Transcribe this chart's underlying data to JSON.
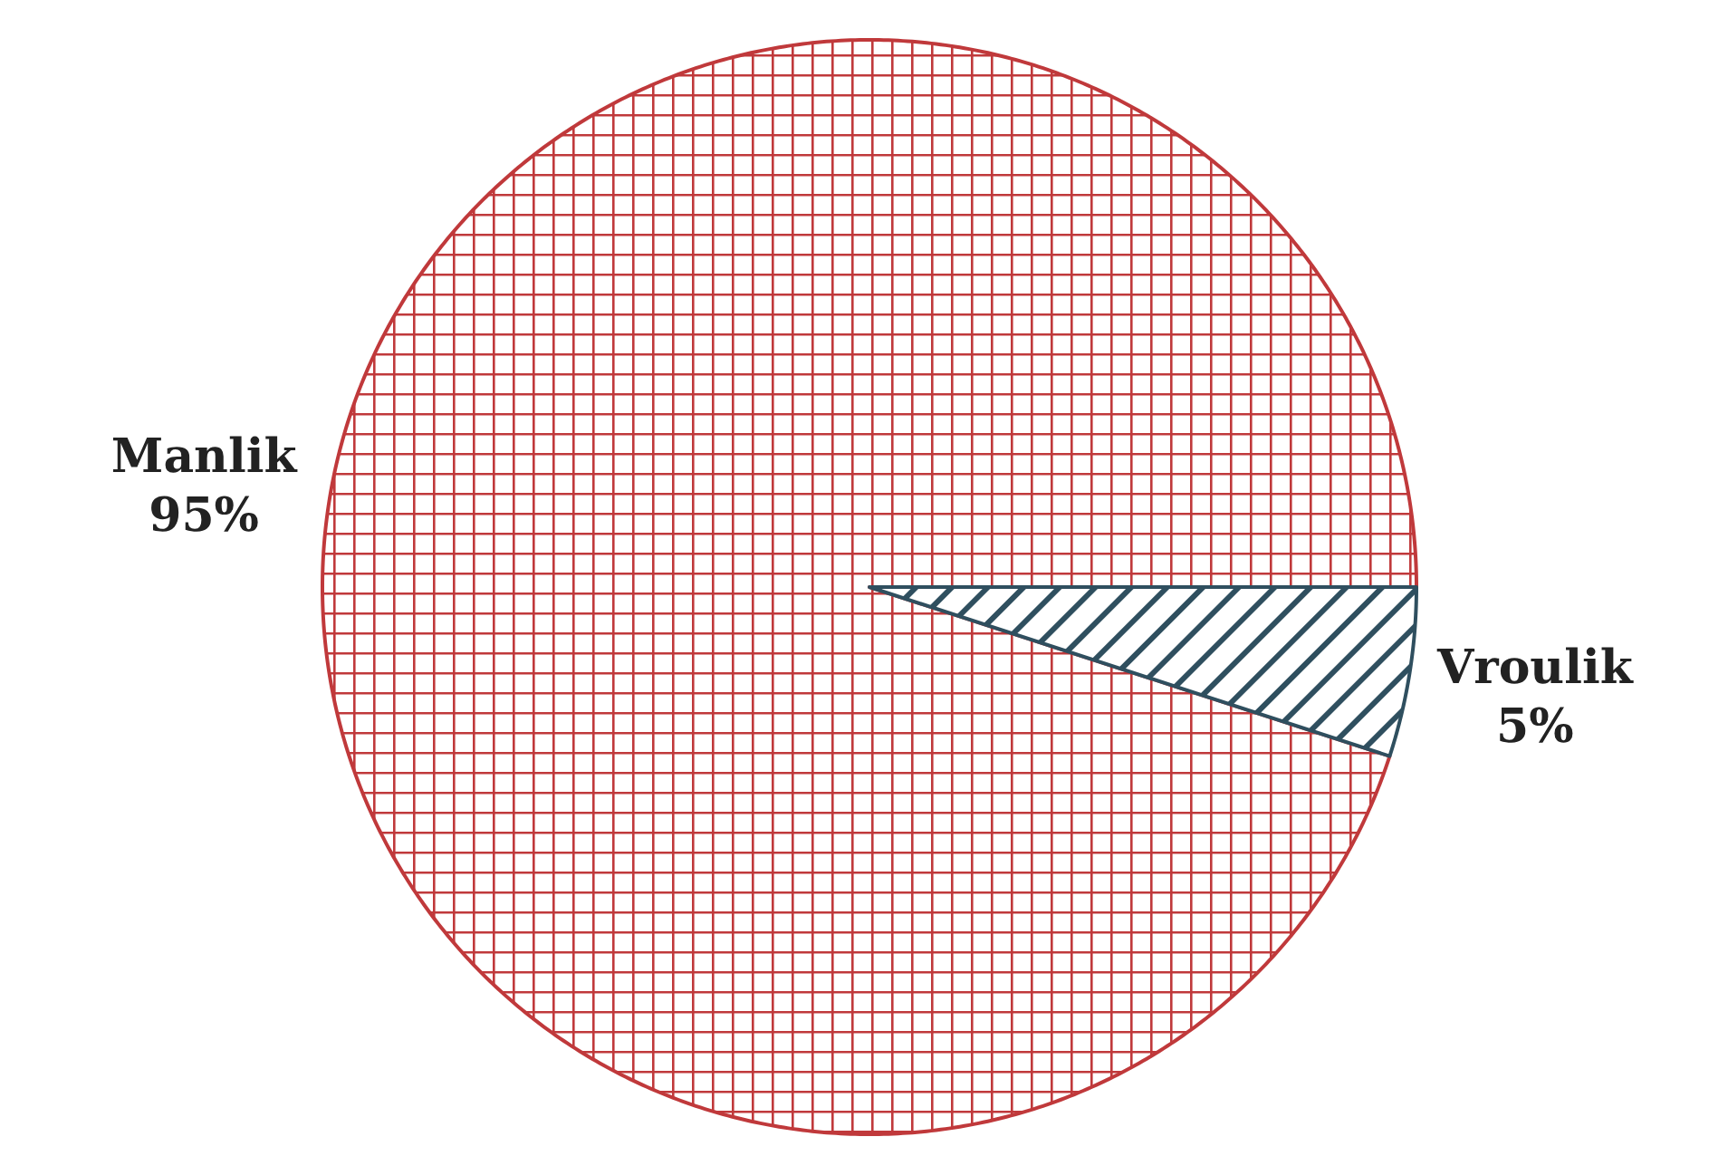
{
  "chart_data": {
    "type": "pie",
    "categories": [
      "Manlik",
      "Vroulik"
    ],
    "values": [
      95,
      5
    ],
    "colors": [
      "#c0393b",
      "#2f4f5f"
    ],
    "value_labels": [
      "95%",
      "5%"
    ]
  }
}
